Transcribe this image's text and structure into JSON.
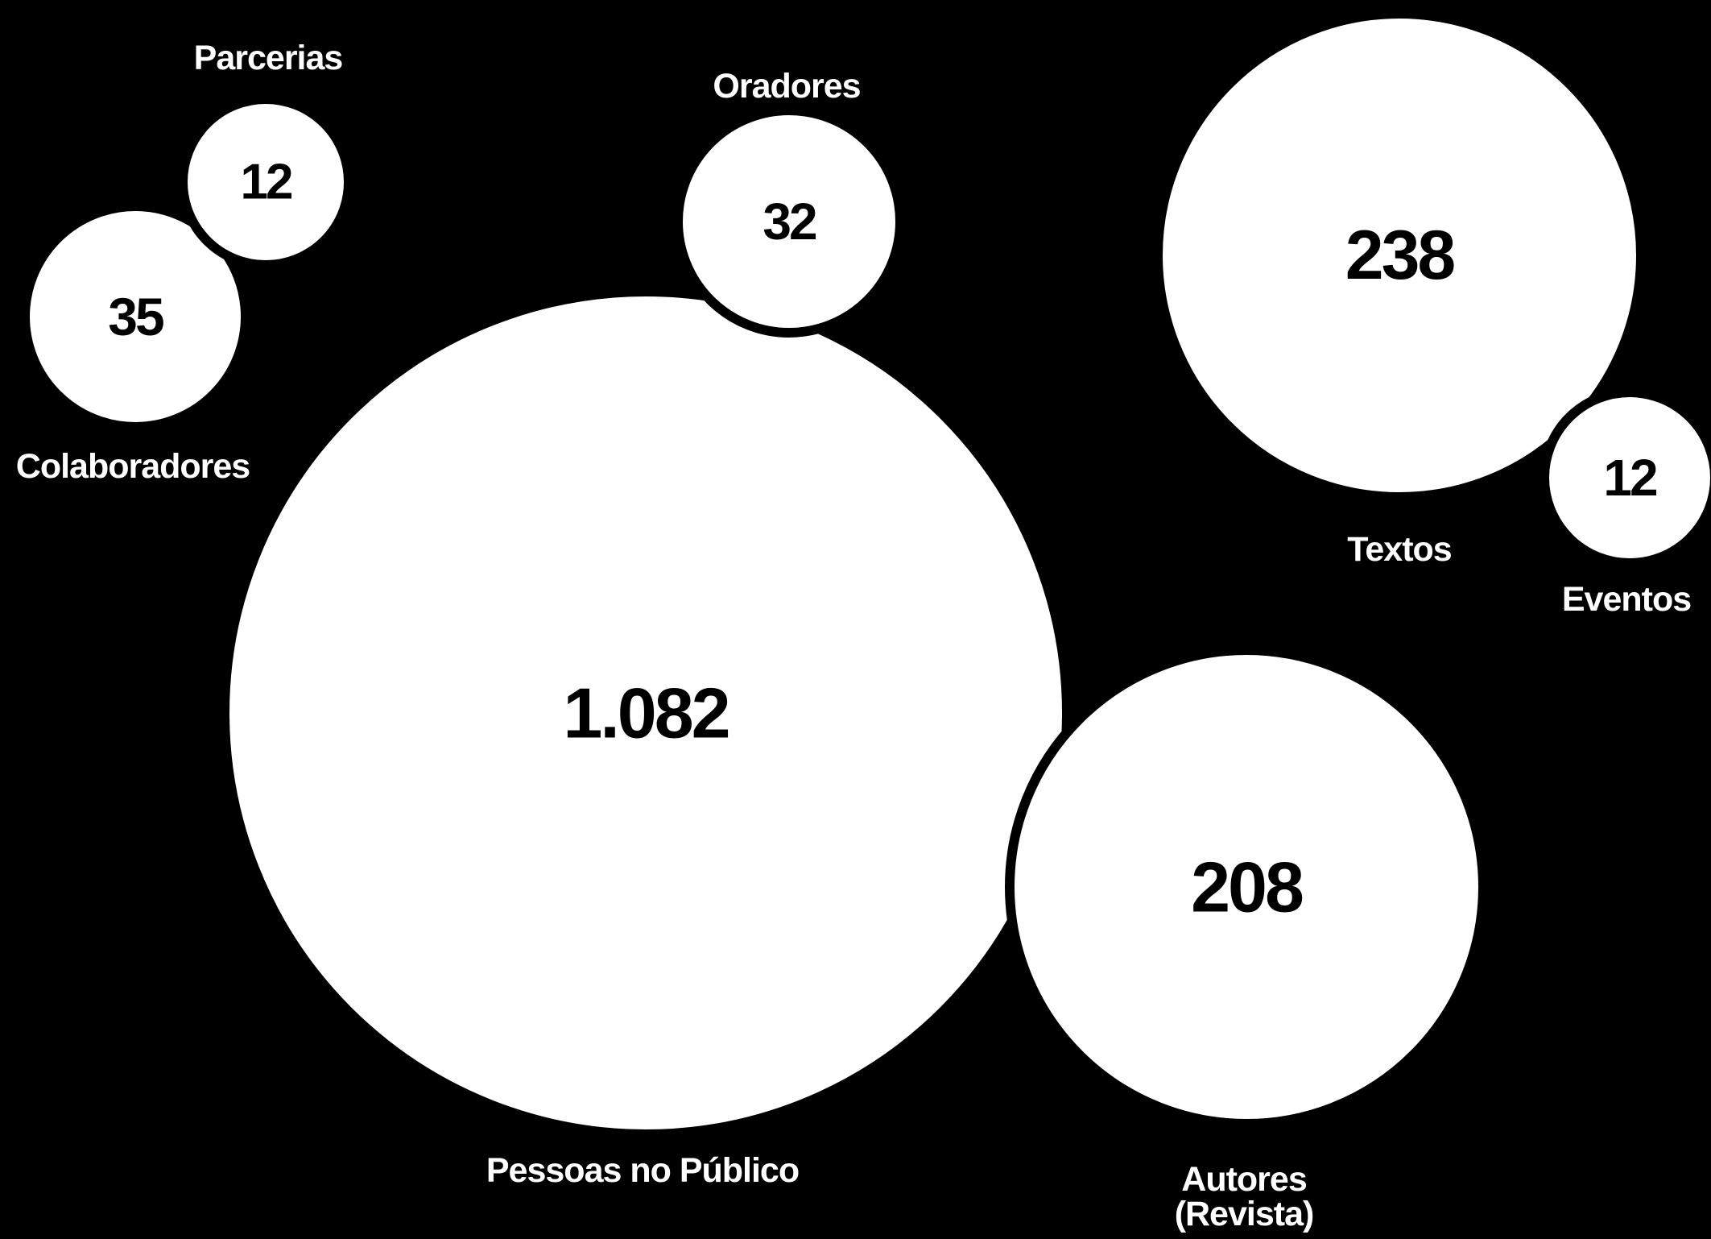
{
  "chart_data": {
    "type": "bubble",
    "title": "",
    "grid": false,
    "legend": false,
    "colors": {
      "background": "#000000",
      "bubble": "#ffffff",
      "value_text": "#000000",
      "label_text": "#ffffff"
    },
    "series": [
      {
        "label": "Parcerias",
        "value": 12,
        "display": "12"
      },
      {
        "label": "Colaboradores",
        "value": 35,
        "display": "35"
      },
      {
        "label": "Oradores",
        "value": 32,
        "display": "32"
      },
      {
        "label": "Pessoas no Público",
        "value": 1082,
        "display": "1.082"
      },
      {
        "label": "Textos",
        "value": 238,
        "display": "238"
      },
      {
        "label": "Eventos",
        "value": 12,
        "display": "12"
      },
      {
        "label": "Autores\n(Revista)",
        "value": 208,
        "display": "208"
      }
    ]
  }
}
